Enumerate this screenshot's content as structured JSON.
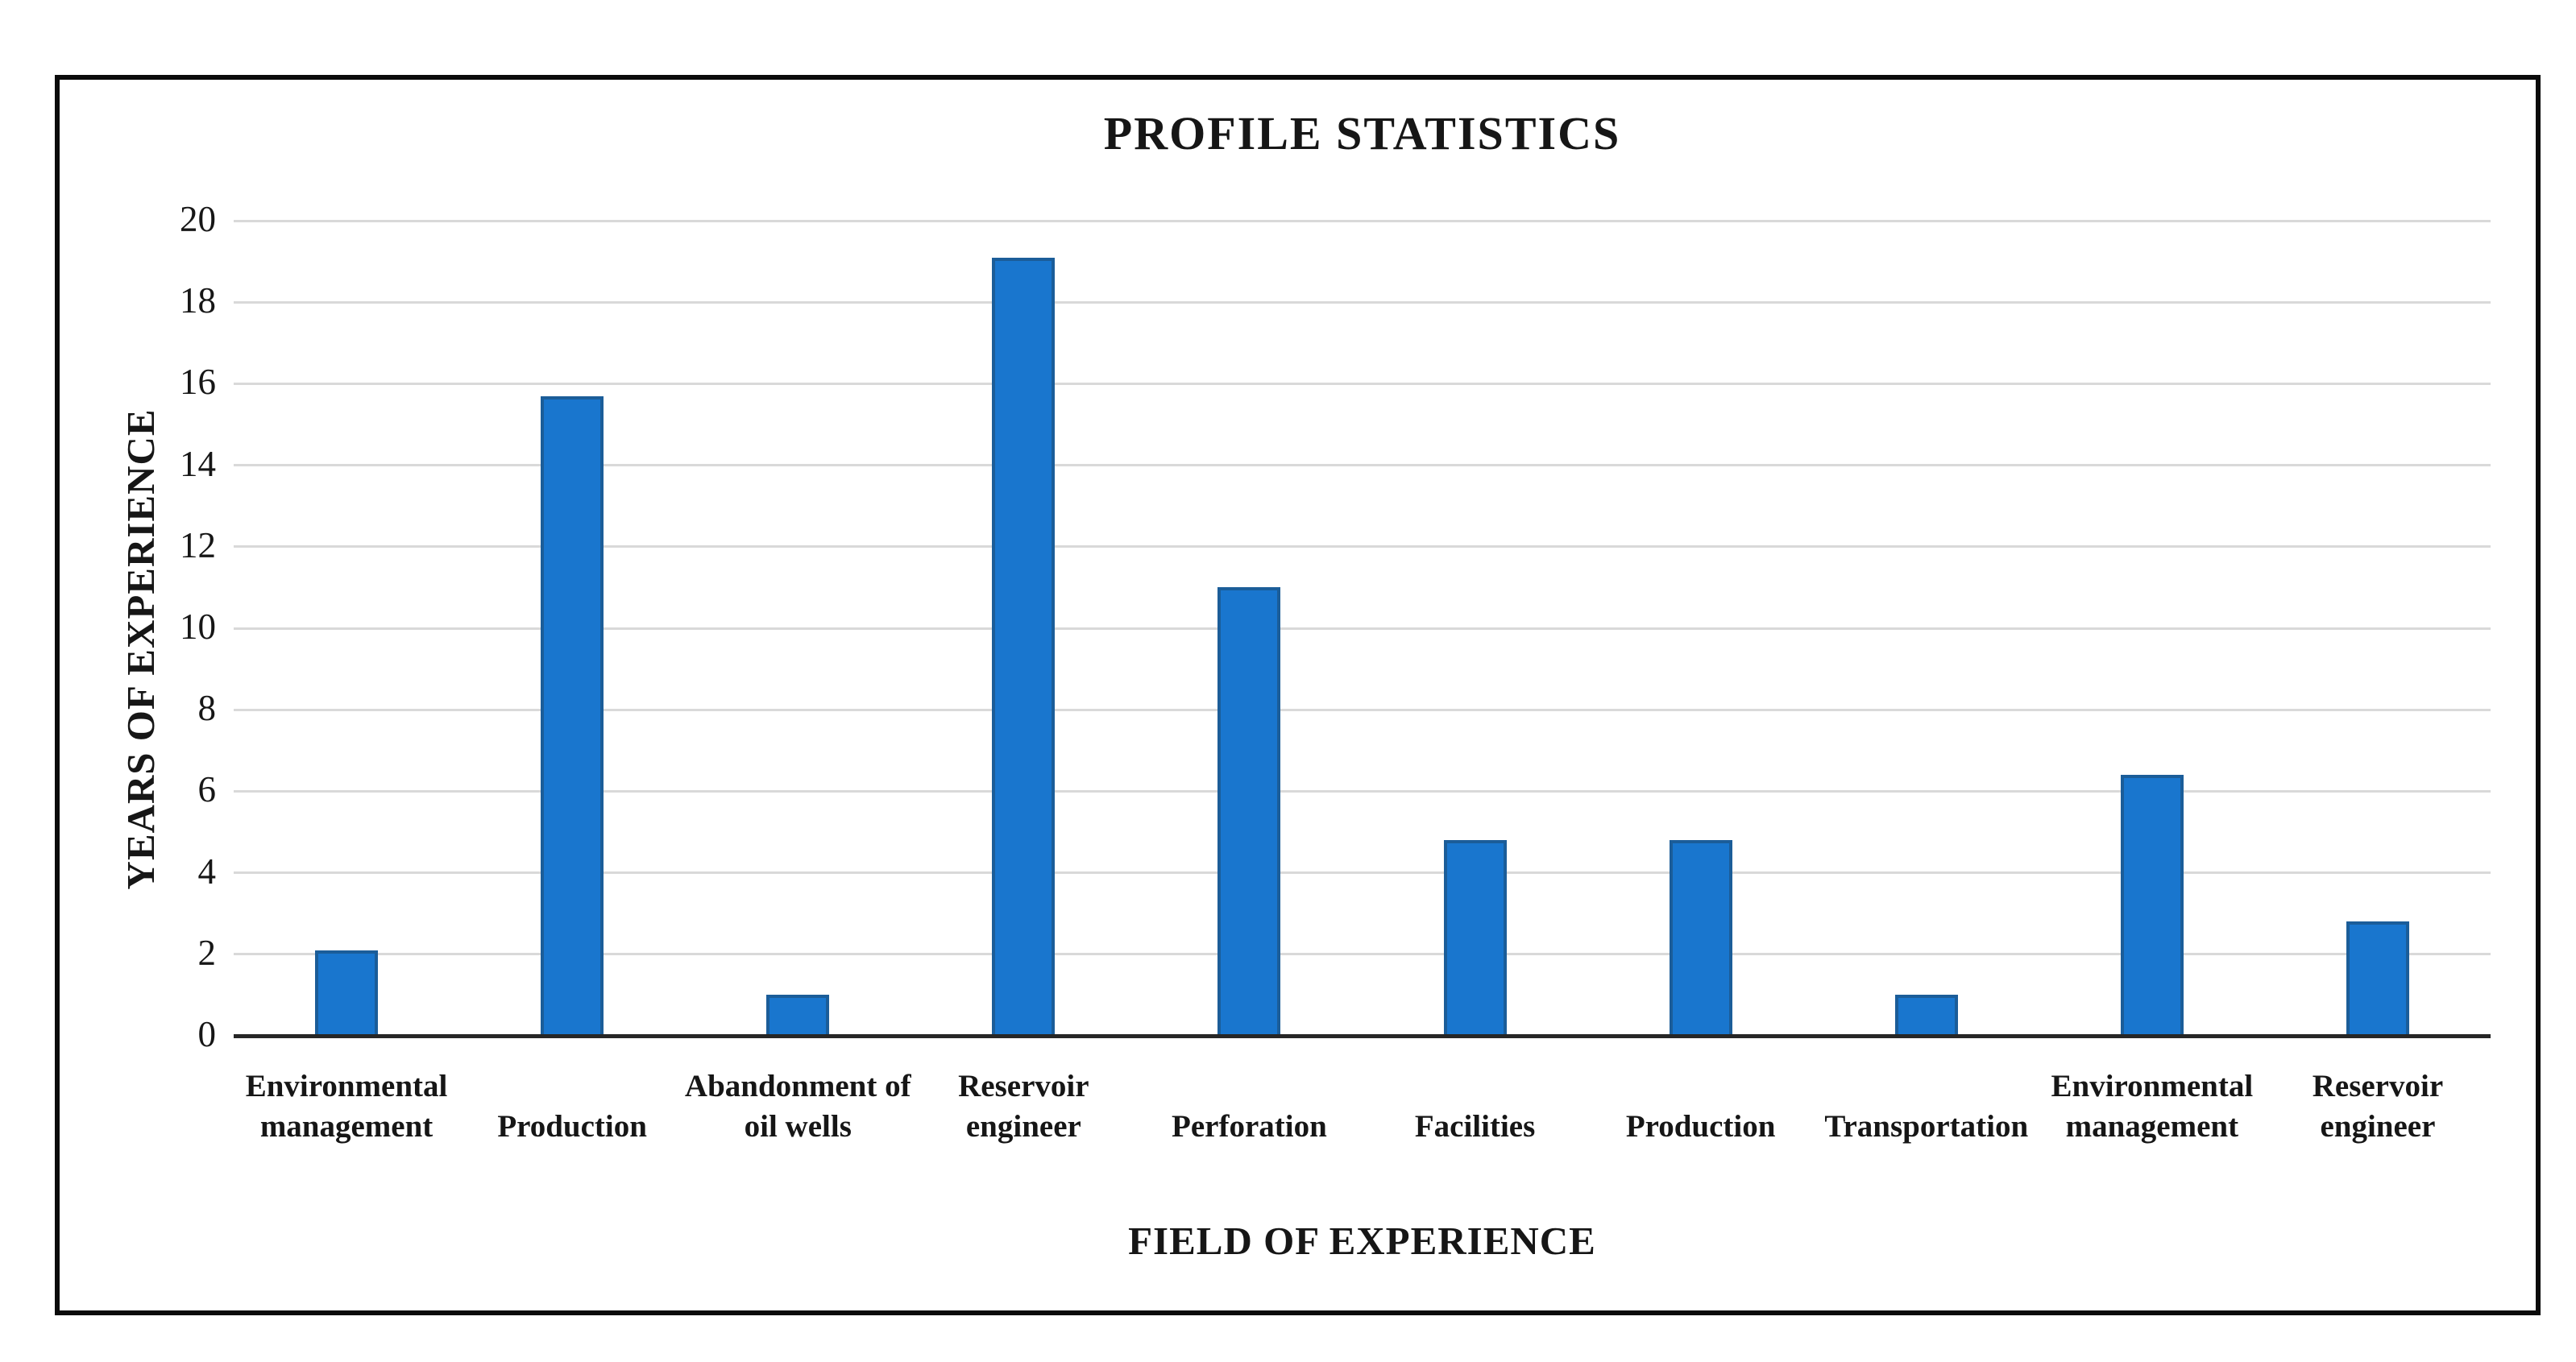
{
  "chart_data": {
    "type": "bar",
    "title": "PROFILE STATISTICS",
    "xlabel": "FIELD OF EXPERIENCE",
    "ylabel": "YEARS OF EXPERIENCE",
    "categories": [
      "Environmental management",
      "Production",
      "Abandonment of oil wells",
      "Reservoir engineer",
      "Perforation",
      "Facilities",
      "Production",
      "Transportation",
      "Environmental management",
      "Reservoir engineer"
    ],
    "category_lines": [
      [
        "Environmental",
        "management"
      ],
      [
        "Production"
      ],
      [
        "Abandonment of",
        "oil wells"
      ],
      [
        "Reservoir",
        "engineer"
      ],
      [
        "Perforation"
      ],
      [
        "Facilities"
      ],
      [
        "Production"
      ],
      [
        "Transportation"
      ],
      [
        "Environmental",
        "management"
      ],
      [
        "Reservoir",
        "engineer"
      ]
    ],
    "values": [
      2.1,
      15.7,
      1,
      19.1,
      11,
      4.8,
      4.8,
      1,
      6.4,
      2.8
    ],
    "ylim": [
      0,
      20
    ],
    "yticks": [
      0,
      2,
      4,
      6,
      8,
      10,
      12,
      14,
      16,
      18,
      20
    ],
    "grid": true,
    "legend": "none",
    "bar_fill_color": "#1976CE",
    "bar_border_color": "#1B5D99",
    "gridline_color": "#D9D9D9",
    "axis_line_color": "#262626",
    "frame_color": "#0B0B0B",
    "text_color": "#161616"
  }
}
